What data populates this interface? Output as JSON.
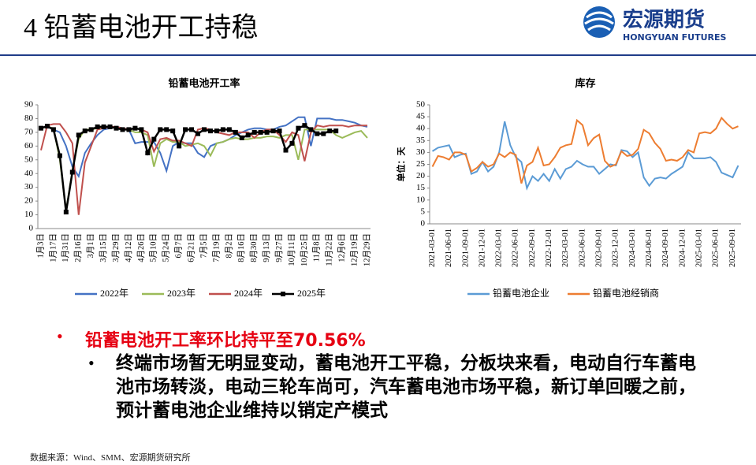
{
  "header": {
    "title": "4 铅蓄电池开工持稳",
    "logo_cn": "宏源期货",
    "logo_en": "HONGYUAN FUTURES"
  },
  "chart_data": [
    {
      "type": "line",
      "title": "铅蓄电池开工率",
      "categories": [
        "1月3日",
        null,
        "1月17日",
        null,
        "1月31日",
        null,
        "2月16日",
        null,
        "3月1日",
        null,
        "3月15日",
        null,
        "3月29日",
        null,
        "4月12日",
        null,
        "4月26日",
        null,
        "5月10日",
        null,
        "5月24日",
        null,
        "6月7日",
        null,
        "6月21日",
        null,
        "7月5日",
        null,
        "7月19日",
        null,
        "8月2日",
        null,
        "8月16日",
        null,
        "8月30日",
        null,
        "9月13日",
        null,
        "9月27日",
        null,
        "10月11日",
        null,
        "10月25日",
        null,
        "11月8日",
        null,
        "11月22日",
        null,
        "12月6日",
        null,
        "12月19日",
        null,
        "12月29日"
      ],
      "ylim": [
        0,
        90
      ],
      "yticks": [
        0,
        10,
        20,
        30,
        40,
        50,
        60,
        70,
        80,
        90
      ],
      "grid": false,
      "legend": "bottom",
      "series": [
        {
          "name": "2022年",
          "color": "#4472c4",
          "values": [
            73,
            74,
            72,
            70,
            60,
            45,
            38,
            55,
            62,
            68,
            72,
            73,
            74,
            73,
            72,
            62,
            63,
            63,
            63,
            55,
            42,
            60,
            63,
            62,
            62,
            55,
            52,
            60,
            62,
            63,
            65,
            68,
            70,
            72,
            73,
            73,
            72,
            72,
            74,
            75,
            78,
            81,
            81,
            60,
            80,
            80,
            80,
            79,
            79,
            78,
            77,
            75,
            74
          ]
        },
        {
          "name": "2023年",
          "color": "#9bbb59",
          "values": [
            73,
            74,
            73,
            50,
            13,
            42,
            65,
            72,
            72,
            73,
            73,
            74,
            73,
            72,
            72,
            70,
            70,
            68,
            45,
            62,
            65,
            63,
            63,
            60,
            61,
            62,
            60,
            53,
            62,
            63,
            65,
            66,
            65,
            65,
            66,
            66,
            67,
            67,
            66,
            68,
            68,
            50,
            72,
            72,
            72,
            72,
            72,
            68,
            66,
            68,
            70,
            71,
            66
          ]
        },
        {
          "name": "2024年",
          "color": "#c0504d",
          "values": [
            57,
            75,
            76,
            76,
            70,
            62,
            10,
            48,
            60,
            72,
            73,
            74,
            74,
            73,
            72,
            73,
            72,
            70,
            56,
            65,
            66,
            64,
            64,
            62,
            60,
            72,
            73,
            72,
            70,
            69,
            68,
            70,
            70,
            70,
            66,
            70,
            72,
            72,
            68,
            63,
            70,
            68,
            49,
            70,
            75,
            74,
            75,
            75,
            75,
            74,
            75,
            75,
            75
          ]
        },
        {
          "name": "2025年",
          "color": "#000000",
          "marker": "square",
          "values": [
            73,
            74.5,
            72,
            53,
            12,
            41,
            68,
            71,
            72,
            74,
            74,
            74,
            73,
            72,
            72,
            73,
            72,
            55,
            65,
            72,
            72,
            71,
            60,
            72,
            72,
            69,
            72,
            71,
            71,
            72,
            72,
            70,
            66,
            68,
            70,
            70,
            70,
            71,
            71,
            57,
            62,
            73,
            75,
            72,
            69,
            69,
            71,
            71,
            null,
            null,
            null,
            null,
            null
          ]
        }
      ]
    },
    {
      "type": "line",
      "title": "库存",
      "y_label": "单位：天",
      "categories": [
        "2021-03-01",
        null,
        null,
        "2021-06-01",
        null,
        null,
        "2021-09-01",
        null,
        null,
        "2021-12-01",
        null,
        null,
        "2022-03-01",
        null,
        null,
        "2022-06-01",
        null,
        null,
        "2022-09-01",
        null,
        null,
        "2022-12-01",
        null,
        null,
        "2023-03-01",
        null,
        null,
        "2023-06-01",
        null,
        null,
        "2023-09-01",
        null,
        null,
        "2023-12-01",
        null,
        null,
        "2024-03-01",
        null,
        null,
        "2024-06-01",
        null,
        null,
        "2024-09-01",
        null,
        null,
        "2024-12-01",
        null,
        null,
        "2025-03-01",
        null,
        null,
        "2025-06-01",
        null,
        null,
        "2025-09-01",
        null
      ],
      "ylim": [
        0,
        50
      ],
      "yticks": [
        0,
        5,
        10,
        15,
        20,
        25,
        30,
        35,
        40,
        45,
        50
      ],
      "grid": false,
      "legend": "bottom",
      "series": [
        {
          "name": "铅蓄电池企业",
          "color": "#5b9bd5",
          "values": [
            30.5,
            32,
            32.5,
            33,
            28,
            29,
            29.5,
            21,
            22,
            26,
            22,
            24,
            30,
            43,
            33,
            28,
            26,
            15,
            20,
            18,
            21,
            18,
            23,
            19,
            23,
            24,
            26.5,
            25,
            24,
            24,
            21,
            23,
            25,
            24.5,
            31,
            30.5,
            28,
            30,
            19.5,
            16,
            19,
            19.5,
            19,
            21,
            22.5,
            24,
            30,
            27.5,
            27.5,
            27.5,
            28,
            26,
            21.5,
            20.5,
            19.5,
            24.5
          ]
        },
        {
          "name": "铅蓄电池经销商",
          "color": "#ed7d31",
          "values": [
            24,
            28.5,
            28,
            27,
            30,
            30,
            29,
            22,
            23.5,
            26,
            24,
            25,
            29.5,
            28,
            30,
            29,
            17,
            24.5,
            26,
            32,
            24.5,
            25,
            28,
            32,
            33,
            33.5,
            43.5,
            41.5,
            33,
            36,
            37.5,
            26.5,
            24,
            25,
            30.5,
            28.5,
            29,
            31.5,
            39.5,
            38,
            34,
            31.5,
            26.5,
            27,
            26.5,
            28,
            31,
            30,
            38,
            38.5,
            38,
            40,
            44.5,
            42,
            40,
            41
          ]
        }
      ]
    }
  ],
  "bullets": {
    "headline": "铅蓄电池开工率环比持平至70.56%",
    "detail": "终端市场暂无明显变动，蓄电池开工平稳，分板块来看，电动自行车蓄电池市场转淡，电动三轮车尚可，汽车蓄电池市场平稳，新订单回暖之前，预计蓄电池企业维持以销定产模式"
  },
  "source": "数据来源：Wind、SMM、宏源期货研究所"
}
